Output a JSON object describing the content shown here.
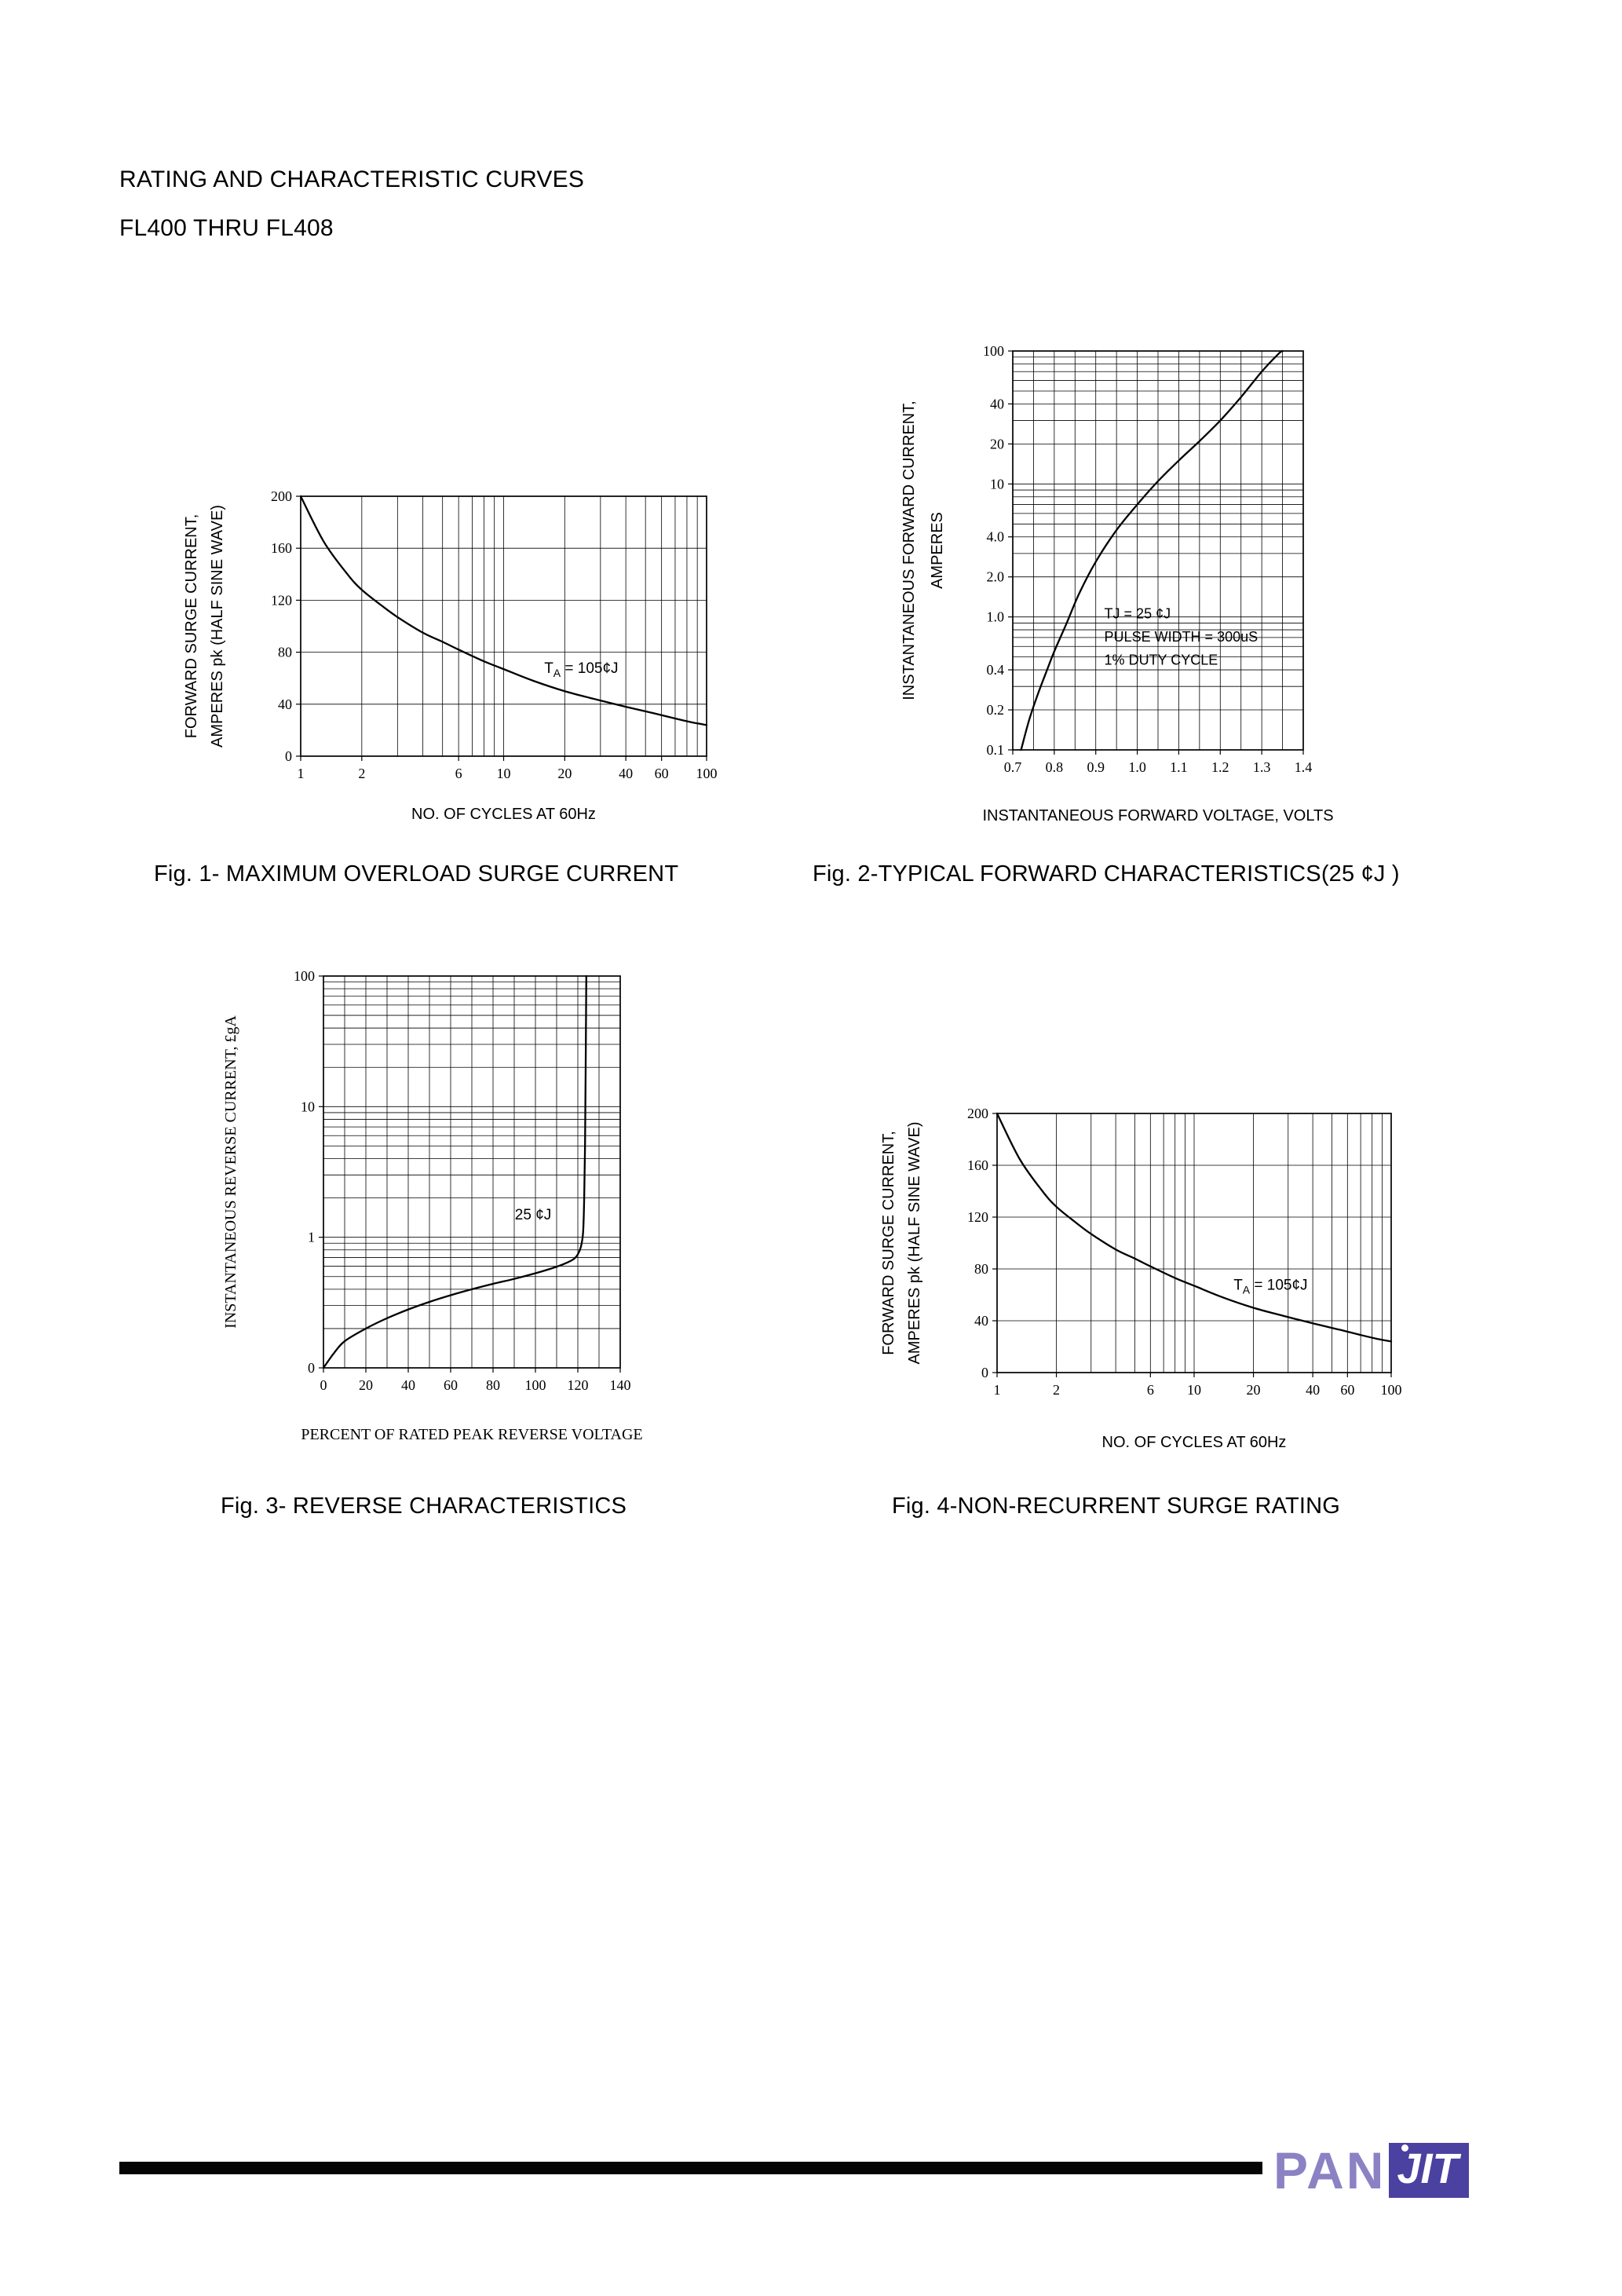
{
  "header": {
    "line1": "RATING AND CHARACTERISTIC CURVES",
    "line2": "FL400 THRU FL408"
  },
  "footer": {
    "brand_pan": "PAN",
    "brand_jit": "JIT",
    "colors": {
      "brand_purple": "#8b82c4",
      "brand_box": "#4b41a0",
      "bar": "#050505"
    }
  },
  "chart_data": [
    {
      "id": "fig1",
      "type": "line",
      "caption": "Fig. 1- MAXIMUM OVERLOAD SURGE CURRENT",
      "x_axis": {
        "scale": "log",
        "min": 1,
        "max": 100,
        "label": "NO. OF CYCLES AT 60Hz",
        "grid": "log",
        "ticks": [
          {
            "v": 1,
            "t": "1"
          },
          {
            "v": 2,
            "t": "2"
          },
          {
            "v": 6,
            "t": "6"
          },
          {
            "v": 10,
            "t": "10"
          },
          {
            "v": 20,
            "t": "20"
          },
          {
            "v": 40,
            "t": "40"
          },
          {
            "v": 60,
            "t": "60"
          },
          {
            "v": 100,
            "t": "100"
          }
        ]
      },
      "y_axis": {
        "scale": "linear",
        "min": 0,
        "max": 200,
        "grid": "ticks",
        "label_lines": [
          "FORWARD SURGE CURRENT,",
          "AMPERES pk (HALF SINE WAVE)"
        ],
        "ticks": [
          {
            "v": 0,
            "t": "0"
          },
          {
            "v": 40,
            "t": "40"
          },
          {
            "v": 80,
            "t": "80"
          },
          {
            "v": 120,
            "t": "120"
          },
          {
            "v": 160,
            "t": "160"
          },
          {
            "v": 200,
            "t": "200"
          }
        ]
      },
      "series": [
        {
          "name": "overload-surge-current",
          "points": [
            [
              1,
              200
            ],
            [
              1.3,
              165
            ],
            [
              1.7,
              140
            ],
            [
              2,
              128
            ],
            [
              2.5,
              116
            ],
            [
              3,
              107
            ],
            [
              4,
              95
            ],
            [
              5,
              88
            ],
            [
              6,
              82
            ],
            [
              8,
              73
            ],
            [
              10,
              67
            ],
            [
              14,
              58
            ],
            [
              20,
              50
            ],
            [
              28,
              44
            ],
            [
              40,
              38
            ],
            [
              55,
              33
            ],
            [
              70,
              29
            ],
            [
              85,
              26
            ],
            [
              100,
              24
            ]
          ]
        }
      ],
      "annotations": [
        {
          "fx": 0.6,
          "fy": 0.68,
          "parts": [
            {
              "t": "T"
            },
            {
              "t": "A",
              "sub": true
            },
            {
              "t": " = 105¢J"
            }
          ]
        }
      ]
    },
    {
      "id": "fig2",
      "type": "line",
      "caption": "Fig. 2-TYPICAL FORWARD CHARACTERISTICS(25 ¢J )",
      "x_axis": {
        "scale": "linear",
        "min": 0.7,
        "max": 1.4,
        "label": "INSTANTANEOUS FORWARD VOLTAGE, VOLTS",
        "grid": {
          "step": 0.05
        },
        "ticks": [
          {
            "v": 0.7,
            "t": "0.7"
          },
          {
            "v": 0.8,
            "t": "0.8"
          },
          {
            "v": 0.9,
            "t": "0.9"
          },
          {
            "v": 1.0,
            "t": "1.0"
          },
          {
            "v": 1.1,
            "t": "1.1"
          },
          {
            "v": 1.2,
            "t": "1.2"
          },
          {
            "v": 1.3,
            "t": "1.3"
          },
          {
            "v": 1.4,
            "t": "1.4"
          }
        ]
      },
      "y_axis": {
        "scale": "log",
        "min": 0.1,
        "max": 100,
        "grid": "log",
        "label_lines": [
          "INSTANTANEOUS FORWARD CURRENT,",
          "AMPERES"
        ],
        "ticks": [
          {
            "v": 100,
            "t": "100"
          },
          {
            "v": 40,
            "t": "40"
          },
          {
            "v": 20,
            "t": "20"
          },
          {
            "v": 10,
            "t": "10"
          },
          {
            "v": 4,
            "t": "4.0"
          },
          {
            "v": 2,
            "t": "2.0"
          },
          {
            "v": 1,
            "t": "1.0"
          },
          {
            "v": 0.4,
            "t": "0.4"
          },
          {
            "v": 0.2,
            "t": "0.2"
          },
          {
            "v": 0.1,
            "t": "0.1"
          }
        ]
      },
      "series": [
        {
          "name": "forward-characteristic",
          "points": [
            [
              0.72,
              0.1
            ],
            [
              0.74,
              0.17
            ],
            [
              0.76,
              0.26
            ],
            [
              0.78,
              0.38
            ],
            [
              0.8,
              0.55
            ],
            [
              0.83,
              0.9
            ],
            [
              0.86,
              1.5
            ],
            [
              0.9,
              2.6
            ],
            [
              0.95,
              4.5
            ],
            [
              1.0,
              7.0
            ],
            [
              1.05,
              10.5
            ],
            [
              1.1,
              15
            ],
            [
              1.15,
              21
            ],
            [
              1.2,
              30
            ],
            [
              1.25,
              45
            ],
            [
              1.3,
              70
            ],
            [
              1.34,
              95
            ],
            [
              1.35,
              100
            ]
          ]
        }
      ],
      "annotations": [
        {
          "fx": 0.315,
          "fy": 0.67,
          "parts": [
            {
              "t": "TJ = 25 ¢J"
            }
          ]
        },
        {
          "fx": 0.315,
          "fy": 0.728,
          "parts": [
            {
              "t": "PULSE WIDTH = 300uS"
            }
          ]
        },
        {
          "fx": 0.315,
          "fy": 0.786,
          "parts": [
            {
              "t": "1% DUTY CYCLE"
            }
          ]
        }
      ]
    },
    {
      "id": "fig3",
      "type": "line",
      "caption": "Fig. 3- REVERSE CHARACTERISTICS",
      "x_axis": {
        "scale": "linear",
        "min": 0,
        "max": 140,
        "label": "PERCENT OF RATED PEAK REVERSE VOLTAGE",
        "grid": {
          "step": 10
        },
        "ticks": [
          {
            "v": 0,
            "t": "0"
          },
          {
            "v": 20,
            "t": "20"
          },
          {
            "v": 40,
            "t": "40"
          },
          {
            "v": 60,
            "t": "60"
          },
          {
            "v": 80,
            "t": "80"
          },
          {
            "v": 100,
            "t": "100"
          },
          {
            "v": 120,
            "t": "120"
          },
          {
            "v": 140,
            "t": "140"
          }
        ]
      },
      "y_axis": {
        "scale": "log",
        "min": 0.1,
        "max": 100,
        "grid": "log",
        "label_lines": [
          "INSTANTANEOUS REVERSE CURRENT, £gA"
        ],
        "ticks": [
          {
            "v": 100,
            "t": "100"
          },
          {
            "v": 10,
            "t": "10"
          },
          {
            "v": 1,
            "t": "1"
          },
          {
            "v": 0.1,
            "t": "0"
          }
        ]
      },
      "series": [
        {
          "name": "reverse-characteristic",
          "points": [
            [
              0,
              0.1
            ],
            [
              5,
              0.13
            ],
            [
              10,
              0.16
            ],
            [
              20,
              0.2
            ],
            [
              30,
              0.24
            ],
            [
              40,
              0.28
            ],
            [
              50,
              0.32
            ],
            [
              60,
              0.36
            ],
            [
              70,
              0.4
            ],
            [
              80,
              0.44
            ],
            [
              90,
              0.48
            ],
            [
              100,
              0.53
            ],
            [
              108,
              0.58
            ],
            [
              114,
              0.63
            ],
            [
              118,
              0.68
            ],
            [
              120,
              0.74
            ],
            [
              121.5,
              0.85
            ],
            [
              122.5,
              1.1
            ],
            [
              123,
              2.0
            ],
            [
              123.4,
              5
            ],
            [
              123.7,
              20
            ],
            [
              124,
              100
            ]
          ]
        }
      ],
      "annotations": [
        {
          "fx": 0.645,
          "fy": 0.621,
          "parts": [
            {
              "t": "25 ¢J"
            }
          ]
        }
      ]
    },
    {
      "id": "fig4",
      "type": "line",
      "caption": "Fig. 4-NON-RECURRENT SURGE RATING",
      "x_axis": {
        "scale": "log",
        "min": 1,
        "max": 100,
        "label": "NO. OF CYCLES AT 60Hz",
        "grid": "log",
        "ticks": [
          {
            "v": 1,
            "t": "1"
          },
          {
            "v": 2,
            "t": "2"
          },
          {
            "v": 6,
            "t": "6"
          },
          {
            "v": 10,
            "t": "10"
          },
          {
            "v": 20,
            "t": "20"
          },
          {
            "v": 40,
            "t": "40"
          },
          {
            "v": 60,
            "t": "60"
          },
          {
            "v": 100,
            "t": "100"
          }
        ]
      },
      "y_axis": {
        "scale": "linear",
        "min": 0,
        "max": 200,
        "grid": "ticks",
        "label_lines": [
          "FORWARD SURGE CURRENT,",
          "AMPERES pk (HALF SINE WAVE)"
        ],
        "ticks": [
          {
            "v": 0,
            "t": "0"
          },
          {
            "v": 40,
            "t": "40"
          },
          {
            "v": 80,
            "t": "80"
          },
          {
            "v": 120,
            "t": "120"
          },
          {
            "v": 160,
            "t": "160"
          },
          {
            "v": 200,
            "t": "200"
          }
        ]
      },
      "series": [
        {
          "name": "non-recurrent-surge",
          "points": [
            [
              1,
              200
            ],
            [
              1.3,
              165
            ],
            [
              1.7,
              140
            ],
            [
              2,
              128
            ],
            [
              2.5,
              116
            ],
            [
              3,
              107
            ],
            [
              4,
              95
            ],
            [
              5,
              88
            ],
            [
              6,
              82
            ],
            [
              8,
              73
            ],
            [
              10,
              67
            ],
            [
              14,
              58
            ],
            [
              20,
              50
            ],
            [
              28,
              44
            ],
            [
              40,
              38
            ],
            [
              55,
              33
            ],
            [
              70,
              29
            ],
            [
              85,
              26
            ],
            [
              100,
              24
            ]
          ]
        }
      ],
      "annotations": [
        {
          "fx": 0.6,
          "fy": 0.68,
          "parts": [
            {
              "t": "T"
            },
            {
              "t": "A",
              "sub": true
            },
            {
              "t": " = 105¢J"
            }
          ]
        }
      ]
    }
  ]
}
